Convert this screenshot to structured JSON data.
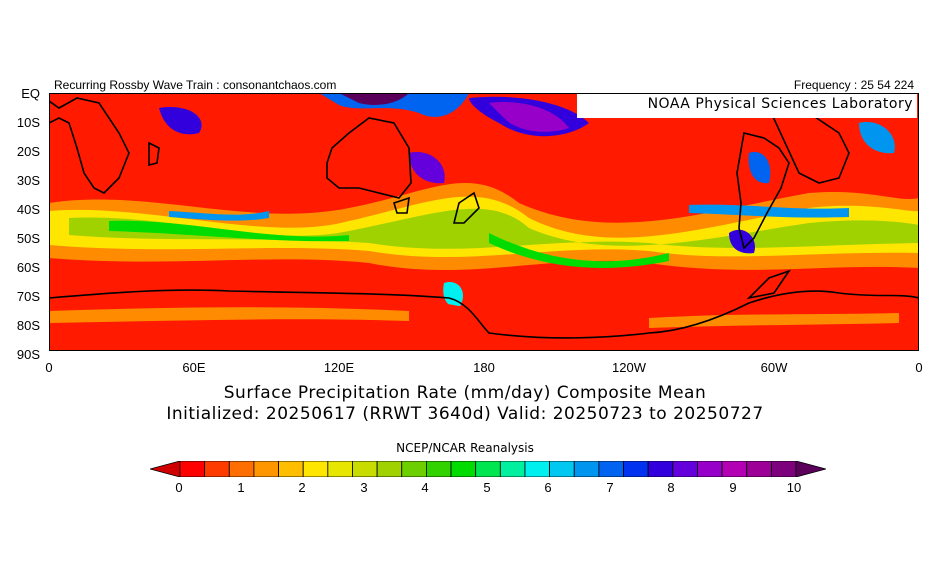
{
  "header": {
    "left_text": "Recurring Rossby Wave Train : consonantchaos.com",
    "right_text": "Frequency : 25 54 224"
  },
  "map": {
    "credit_label": "NOAA Physical Sciences Laboratory",
    "y_axis_labels": [
      "EQ",
      "10S",
      "20S",
      "30S",
      "40S",
      "50S",
      "60S",
      "70S",
      "80S",
      "90S"
    ],
    "x_axis_labels": [
      "0",
      "60E",
      "120E",
      "180",
      "120W",
      "60W",
      "0"
    ]
  },
  "caption": {
    "line1": "Surface Precipitation Rate (mm/day) Composite Mean",
    "line2": "Initialized: 20250617 (RRWT 3640d) Valid: 20250723 to 20250727"
  },
  "source_label": "NCEP/NCAR Reanalysis",
  "colorbar": {
    "labels": [
      "0",
      "1",
      "2",
      "3",
      "4",
      "5",
      "6",
      "7",
      "8",
      "9",
      "10"
    ],
    "colors": [
      "#d10000",
      "#ff0000",
      "#ff3c00",
      "#ff6e00",
      "#ff9600",
      "#ffbe00",
      "#ffe600",
      "#e6e600",
      "#c8dc00",
      "#a0d200",
      "#6ecf00",
      "#32d200",
      "#00dc00",
      "#00e650",
      "#00f0a0",
      "#00f0f0",
      "#00c8f0",
      "#0096f0",
      "#0064f0",
      "#0032f0",
      "#3200dc",
      "#6400dc",
      "#9600c8",
      "#b400b4",
      "#9c0096",
      "#7d007d",
      "#5a005a"
    ]
  }
}
